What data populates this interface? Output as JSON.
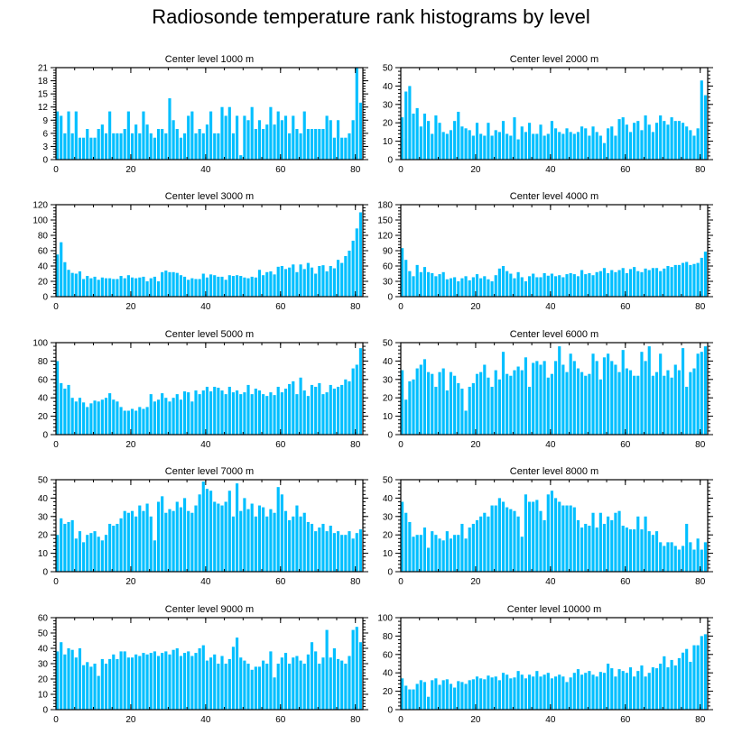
{
  "title": "Radiosonde temperature rank histograms by level",
  "colors": {
    "bar": "#00bfff",
    "axis": "#000000",
    "background": "#ffffff"
  },
  "chart_data": [
    {
      "type": "bar",
      "title": "Center level 1000 m",
      "xlim": [
        0,
        82
      ],
      "ylim": [
        0,
        21
      ],
      "xticks": [
        0,
        20,
        40,
        60,
        80
      ],
      "yticks": [
        0,
        3,
        6,
        9,
        12,
        15,
        18,
        21
      ],
      "values": [
        11,
        10,
        6,
        11,
        6,
        11,
        5,
        5,
        7,
        5,
        5,
        7,
        8,
        6,
        11,
        6,
        6,
        6,
        7,
        11,
        6,
        8,
        6,
        11,
        8,
        6,
        5,
        7,
        7,
        6,
        14,
        9,
        7,
        5,
        6,
        10,
        11,
        6,
        7,
        6,
        8,
        11,
        6,
        6,
        12,
        10,
        12,
        6,
        10,
        1,
        10,
        9,
        12,
        7,
        9,
        7,
        8,
        12,
        8,
        11,
        9,
        10,
        6,
        10,
        7,
        6,
        11,
        7,
        7,
        7,
        7,
        7,
        10,
        9,
        5,
        9,
        5,
        5,
        6,
        9,
        21,
        13
      ]
    },
    {
      "type": "bar",
      "title": "Center level 2000 m",
      "xlim": [
        0,
        82
      ],
      "ylim": [
        0,
        50
      ],
      "xticks": [
        0,
        20,
        40,
        60,
        80
      ],
      "yticks": [
        0,
        10,
        20,
        30,
        40,
        50
      ],
      "values": [
        23,
        37,
        40,
        25,
        28,
        18,
        25,
        21,
        14,
        24,
        20,
        15,
        14,
        16,
        21,
        26,
        18,
        17,
        16,
        13,
        20,
        14,
        13,
        20,
        13,
        16,
        15,
        21,
        14,
        13,
        23,
        11,
        18,
        15,
        20,
        14,
        14,
        19,
        13,
        14,
        21,
        17,
        15,
        14,
        17,
        15,
        14,
        15,
        18,
        17,
        13,
        18,
        15,
        13,
        9,
        17,
        18,
        13,
        22,
        23,
        19,
        15,
        20,
        21,
        16,
        24,
        19,
        15,
        20,
        24,
        21,
        19,
        23,
        21,
        21,
        20,
        18,
        16,
        13,
        17,
        43,
        35
      ]
    },
    {
      "type": "bar",
      "title": "Center level 3000 m",
      "xlim": [
        0,
        82
      ],
      "ylim": [
        0,
        120
      ],
      "xticks": [
        0,
        20,
        40,
        60,
        80
      ],
      "yticks": [
        0,
        20,
        40,
        60,
        80,
        100,
        120
      ],
      "values": [
        55,
        71,
        45,
        35,
        31,
        30,
        33,
        23,
        27,
        24,
        26,
        22,
        25,
        24,
        24,
        23,
        23,
        27,
        24,
        28,
        25,
        24,
        25,
        26,
        20,
        24,
        26,
        20,
        32,
        34,
        32,
        32,
        31,
        28,
        26,
        22,
        24,
        23,
        23,
        30,
        25,
        29,
        28,
        26,
        26,
        22,
        28,
        27,
        28,
        27,
        25,
        24,
        26,
        25,
        35,
        28,
        32,
        33,
        29,
        39,
        40,
        36,
        38,
        42,
        32,
        42,
        36,
        44,
        38,
        30,
        40,
        41,
        33,
        40,
        37,
        48,
        44,
        53,
        60,
        73,
        89,
        110
      ]
    },
    {
      "type": "bar",
      "title": "Center level 4000 m",
      "xlim": [
        0,
        82
      ],
      "ylim": [
        0,
        180
      ],
      "xticks": [
        0,
        20,
        40,
        60,
        80
      ],
      "yticks": [
        0,
        30,
        60,
        90,
        120,
        150,
        180
      ],
      "values": [
        95,
        72,
        50,
        40,
        62,
        48,
        58,
        48,
        46,
        40,
        44,
        48,
        34,
        36,
        38,
        30,
        36,
        40,
        32,
        38,
        44,
        36,
        40,
        34,
        30,
        42,
        55,
        60,
        50,
        45,
        36,
        48,
        38,
        30,
        40,
        45,
        38,
        38,
        46,
        41,
        45,
        40,
        42,
        38,
        44,
        46,
        44,
        40,
        52,
        44,
        46,
        42,
        48,
        50,
        56,
        46,
        52,
        48,
        52,
        56,
        46,
        54,
        58,
        50,
        48,
        55,
        52,
        56,
        56,
        50,
        55,
        60,
        58,
        62,
        62,
        66,
        68,
        62,
        64,
        66,
        76,
        88
      ]
    },
    {
      "type": "bar",
      "title": "Center level 5000 m",
      "xlim": [
        0,
        82
      ],
      "ylim": [
        0,
        100
      ],
      "xticks": [
        0,
        20,
        40,
        60,
        80
      ],
      "yticks": [
        0,
        20,
        40,
        60,
        80,
        100
      ],
      "values": [
        80,
        56,
        50,
        54,
        40,
        36,
        40,
        35,
        30,
        34,
        37,
        36,
        38,
        40,
        45,
        38,
        36,
        30,
        26,
        26,
        28,
        26,
        30,
        28,
        30,
        44,
        36,
        38,
        45,
        40,
        36,
        40,
        44,
        38,
        47,
        46,
        36,
        48,
        44,
        48,
        52,
        47,
        52,
        51,
        48,
        44,
        52,
        46,
        48,
        44,
        46,
        54,
        44,
        50,
        48,
        44,
        42,
        46,
        43,
        52,
        46,
        50,
        55,
        58,
        44,
        62,
        48,
        42,
        54,
        52,
        56,
        44,
        46,
        54,
        50,
        52,
        54,
        60,
        58,
        72,
        76,
        94
      ]
    },
    {
      "type": "bar",
      "title": "Center level 6000 m",
      "xlim": [
        0,
        82
      ],
      "ylim": [
        0,
        50
      ],
      "xticks": [
        0,
        20,
        40,
        60,
        80
      ],
      "yticks": [
        0,
        10,
        20,
        30,
        40,
        50
      ],
      "values": [
        35,
        19,
        29,
        30,
        36,
        38,
        41,
        34,
        33,
        26,
        34,
        36,
        24,
        34,
        32,
        28,
        25,
        13,
        26,
        28,
        33,
        34,
        38,
        31,
        26,
        35,
        30,
        45,
        33,
        32,
        35,
        37,
        35,
        42,
        26,
        39,
        40,
        38,
        40,
        31,
        33,
        40,
        48,
        38,
        34,
        44,
        40,
        36,
        34,
        32,
        33,
        44,
        40,
        30,
        42,
        44,
        40,
        38,
        34,
        46,
        36,
        35,
        32,
        32,
        45,
        40,
        48,
        32,
        34,
        44,
        32,
        35,
        31,
        38,
        35,
        47,
        26,
        34,
        36,
        44,
        45,
        48
      ]
    },
    {
      "type": "bar",
      "title": "Center level 7000 m",
      "xlim": [
        0,
        82
      ],
      "ylim": [
        0,
        50
      ],
      "xticks": [
        0,
        20,
        40,
        60,
        80
      ],
      "yticks": [
        0,
        10,
        20,
        30,
        40,
        50
      ],
      "values": [
        20,
        29,
        26,
        27,
        28,
        18,
        22,
        16,
        20,
        21,
        22,
        19,
        17,
        20,
        26,
        25,
        26,
        29,
        33,
        32,
        33,
        30,
        36,
        33,
        37,
        30,
        17,
        38,
        41,
        32,
        34,
        33,
        38,
        35,
        40,
        33,
        32,
        36,
        42,
        49,
        45,
        44,
        38,
        37,
        36,
        38,
        44,
        30,
        48,
        33,
        40,
        34,
        37,
        30,
        36,
        35,
        30,
        34,
        32,
        46,
        42,
        33,
        28,
        30,
        36,
        30,
        32,
        27,
        26,
        22,
        24,
        26,
        22,
        25,
        21,
        22,
        20,
        20,
        22,
        18,
        21,
        23
      ]
    },
    {
      "type": "bar",
      "title": "Center level 8000 m",
      "xlim": [
        0,
        82
      ],
      "ylim": [
        0,
        50
      ],
      "xticks": [
        0,
        20,
        40,
        60,
        80
      ],
      "yticks": [
        0,
        10,
        20,
        30,
        40,
        50
      ],
      "values": [
        38,
        32,
        27,
        19,
        20,
        20,
        24,
        13,
        22,
        20,
        18,
        17,
        22,
        18,
        20,
        20,
        26,
        18,
        24,
        26,
        28,
        30,
        32,
        30,
        36,
        36,
        40,
        38,
        35,
        34,
        33,
        30,
        19,
        42,
        38,
        38,
        39,
        33,
        28,
        42,
        44,
        40,
        38,
        36,
        36,
        36,
        35,
        28,
        24,
        26,
        25,
        32,
        24,
        32,
        26,
        30,
        28,
        32,
        33,
        25,
        24,
        23,
        23,
        30,
        23,
        30,
        22,
        20,
        22,
        16,
        14,
        16,
        16,
        14,
        12,
        14,
        26,
        16,
        12,
        18,
        12,
        16
      ]
    },
    {
      "type": "bar",
      "title": "Center level 9000 m",
      "xlim": [
        0,
        82
      ],
      "ylim": [
        0,
        60
      ],
      "xticks": [
        0,
        20,
        40,
        60,
        80
      ],
      "yticks": [
        0,
        10,
        20,
        30,
        40,
        50,
        60
      ],
      "values": [
        38,
        44,
        36,
        40,
        39,
        34,
        40,
        29,
        31,
        28,
        30,
        22,
        33,
        30,
        33,
        36,
        33,
        38,
        38,
        34,
        34,
        36,
        35,
        37,
        36,
        37,
        38,
        35,
        37,
        38,
        36,
        39,
        40,
        35,
        37,
        38,
        35,
        37,
        40,
        42,
        32,
        34,
        36,
        30,
        35,
        30,
        33,
        41,
        47,
        34,
        32,
        30,
        26,
        28,
        28,
        32,
        30,
        38,
        21,
        30,
        34,
        37,
        30,
        34,
        35,
        32,
        30,
        36,
        44,
        38,
        30,
        34,
        52,
        34,
        40,
        33,
        32,
        30,
        35,
        52,
        54,
        44
      ]
    },
    {
      "type": "bar",
      "title": "Center level 10000 m",
      "xlim": [
        0,
        82
      ],
      "ylim": [
        0,
        100
      ],
      "xticks": [
        0,
        20,
        40,
        60,
        80
      ],
      "yticks": [
        0,
        20,
        40,
        60,
        80,
        100
      ],
      "values": [
        34,
        26,
        22,
        22,
        28,
        32,
        30,
        14,
        32,
        34,
        27,
        32,
        33,
        28,
        24,
        31,
        30,
        28,
        32,
        33,
        36,
        34,
        33,
        37,
        35,
        36,
        32,
        40,
        38,
        34,
        35,
        42,
        38,
        34,
        38,
        36,
        42,
        36,
        38,
        40,
        34,
        36,
        38,
        36,
        30,
        35,
        40,
        44,
        38,
        40,
        42,
        38,
        36,
        41,
        40,
        50,
        45,
        36,
        44,
        42,
        40,
        46,
        36,
        42,
        48,
        36,
        40,
        46,
        45,
        50,
        58,
        46,
        54,
        48,
        56,
        62,
        66,
        52,
        70,
        70,
        80,
        82
      ]
    }
  ]
}
